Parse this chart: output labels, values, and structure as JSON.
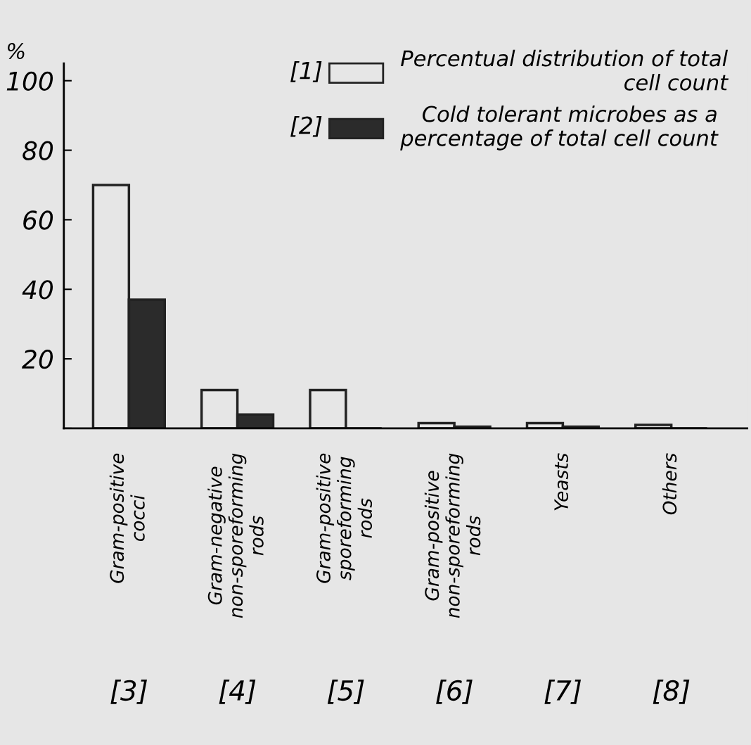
{
  "chart_data": {
    "type": "bar",
    "ylabel": "%",
    "categories": [
      "Gram-positive\ncocci",
      "Gram-negative\nnon-sporeforming\nrods",
      "Gram-positive\nsporeforming\nrods",
      "Gram-positive\nnon-sporeforming\nrods",
      "Yeasts",
      "Others"
    ],
    "series": [
      {
        "name": "Percentual distribution of total\ncell count",
        "color": "#e6e6e6",
        "values": [
          70,
          11,
          11,
          1.5,
          1.5,
          1
        ]
      },
      {
        "name": "Cold tolerant microbes as a\npercentage of total cell count",
        "color": "#2b2b2b",
        "values": [
          37,
          4,
          0,
          0.5,
          0.5,
          0
        ]
      }
    ],
    "ylim": [
      0,
      105
    ],
    "yticks": [
      {
        "value": 0,
        "label": null
      },
      20,
      40,
      60,
      80,
      100
    ],
    "annotations": [
      "[1]",
      "[2]",
      "[3]",
      "[4]",
      "[5]",
      "[6]",
      "[7]",
      "[8]"
    ],
    "legend": "top right",
    "grid": false
  }
}
